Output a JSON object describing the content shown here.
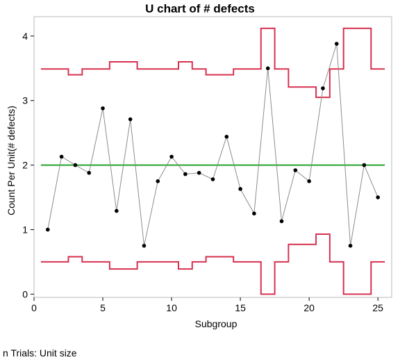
{
  "footnote": "n Trials: Unit size",
  "chart_data": {
    "type": "line",
    "title": "U chart of # defects",
    "xlabel": "Subgroup",
    "ylabel": "Count Per Unit(# defects)",
    "xlim": [
      0,
      26
    ],
    "ylim": [
      -0.05,
      4.3
    ],
    "x_ticks": [
      0,
      5,
      10,
      15,
      20,
      25
    ],
    "y_ticks": [
      0,
      1,
      2,
      3,
      4
    ],
    "grid": false,
    "legend": "none",
    "center_line": 2.0,
    "series": [
      {
        "role": "points",
        "x": [
          1,
          2,
          3,
          4,
          5,
          6,
          7,
          8,
          9,
          10,
          11,
          12,
          13,
          14,
          15,
          16,
          17,
          18,
          19,
          20,
          21,
          22,
          23,
          24,
          25
        ],
        "values": [
          1.0,
          2.13,
          2.0,
          1.88,
          2.88,
          1.29,
          2.71,
          0.75,
          1.75,
          2.13,
          1.86,
          1.88,
          1.78,
          2.44,
          1.63,
          1.25,
          3.5,
          1.13,
          1.92,
          1.75,
          3.19,
          3.88,
          0.75,
          2.0,
          1.5
        ]
      },
      {
        "role": "upper-limit",
        "x": [
          1,
          2,
          3,
          4,
          5,
          6,
          7,
          8,
          9,
          10,
          11,
          12,
          13,
          14,
          15,
          16,
          17,
          18,
          19,
          20,
          21,
          22,
          23,
          24,
          25
        ],
        "values": [
          3.49,
          3.49,
          3.4,
          3.49,
          3.49,
          3.6,
          3.6,
          3.49,
          3.49,
          3.49,
          3.6,
          3.49,
          3.4,
          3.4,
          3.49,
          3.49,
          4.12,
          3.49,
          3.21,
          3.21,
          3.05,
          3.49,
          4.12,
          4.12,
          3.49
        ]
      },
      {
        "role": "lower-limit",
        "x": [
          1,
          2,
          3,
          4,
          5,
          6,
          7,
          8,
          9,
          10,
          11,
          12,
          13,
          14,
          15,
          16,
          17,
          18,
          19,
          20,
          21,
          22,
          23,
          24,
          25
        ],
        "values": [
          0.5,
          0.5,
          0.58,
          0.5,
          0.5,
          0.39,
          0.39,
          0.5,
          0.5,
          0.5,
          0.39,
          0.5,
          0.58,
          0.58,
          0.5,
          0.5,
          0.0,
          0.5,
          0.77,
          0.77,
          0.93,
          0.5,
          0.0,
          0.0,
          0.5
        ]
      }
    ]
  },
  "colors": {
    "limits": "#d6304f",
    "center": "#22a22a",
    "points": "#000000",
    "connector": "#8c8c8c",
    "frame": "#b8b8b8"
  }
}
